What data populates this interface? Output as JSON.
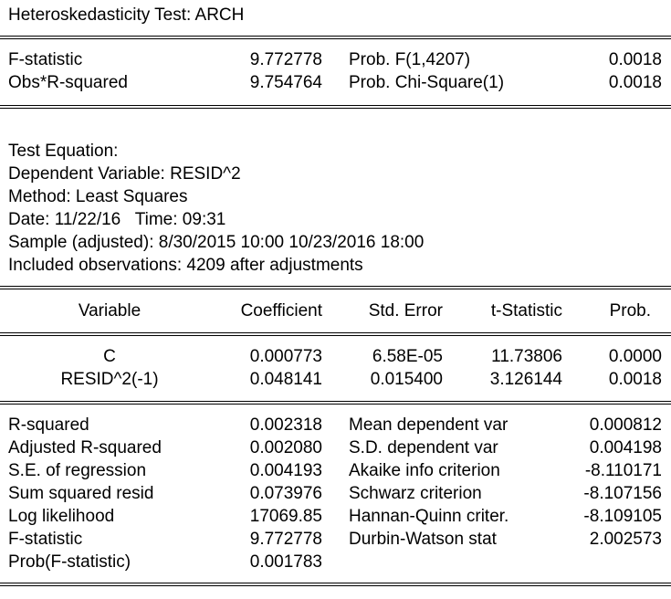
{
  "title": "Heteroskedasticity Test: ARCH",
  "test_stats": [
    {
      "label": "F-statistic",
      "value": "9.772778",
      "prob_label": "Prob. F(1,4207)",
      "prob_value": "0.0018"
    },
    {
      "label": "Obs*R-squared",
      "value": "9.754764",
      "prob_label": "Prob. Chi-Square(1)",
      "prob_value": "0.0018"
    }
  ],
  "equation_info": [
    "Test Equation:",
    "Dependent Variable: RESID^2",
    "Method: Least Squares",
    "Date: 11/22/16   Time: 09:31",
    "Sample (adjusted): 8/30/2015 10:00 10/23/2016 18:00",
    "Included observations: 4209 after adjustments"
  ],
  "coef_table": {
    "headers": [
      "Variable",
      "Coefficient",
      "Std. Error",
      "t-Statistic",
      "Prob."
    ],
    "rows": [
      [
        "C",
        "0.000773",
        "6.58E-05",
        "11.73806",
        "0.0000"
      ],
      [
        "RESID^2(-1)",
        "0.048141",
        "0.015400",
        "3.126144",
        "0.0018"
      ]
    ]
  },
  "summary_stats": [
    {
      "l1": "R-squared",
      "v1": "0.002318",
      "l2": "Mean dependent var",
      "v2": "0.000812"
    },
    {
      "l1": "Adjusted R-squared",
      "v1": "0.002080",
      "l2": "S.D. dependent var",
      "v2": "0.004198"
    },
    {
      "l1": "S.E. of regression",
      "v1": "0.004193",
      "l2": "Akaike info criterion",
      "v2": "-8.110171"
    },
    {
      "l1": "Sum squared resid",
      "v1": "0.073976",
      "l2": "Schwarz criterion",
      "v2": "-8.107156"
    },
    {
      "l1": "Log likelihood",
      "v1": "17069.85",
      "l2": "Hannan-Quinn criter.",
      "v2": "-8.109105"
    },
    {
      "l1": "F-statistic",
      "v1": "9.772778",
      "l2": "Durbin-Watson stat",
      "v2": "2.002573"
    },
    {
      "l1": "Prob(F-statistic)",
      "v1": "0.001783",
      "l2": "",
      "v2": ""
    }
  ]
}
